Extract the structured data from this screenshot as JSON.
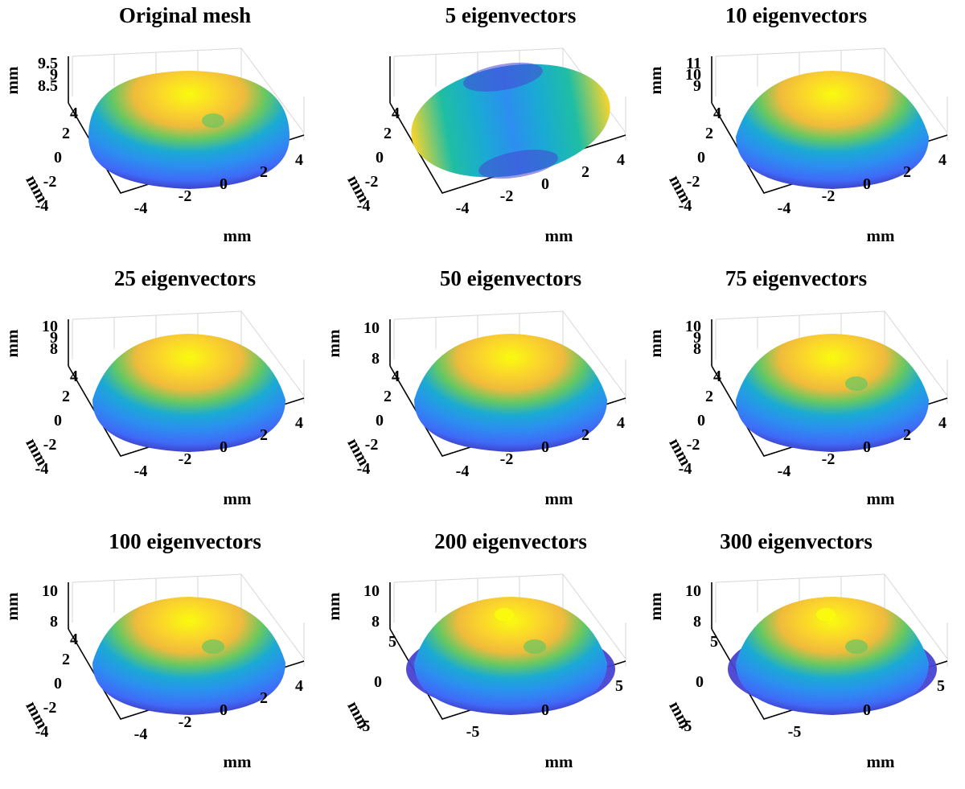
{
  "chart_data": [
    {
      "type": "surface",
      "title": "Original mesh",
      "xlabel": "mm",
      "ylabel": "mm",
      "zlabel": "mm",
      "xticks": [
        "-4",
        "-2",
        "0",
        "2",
        "4"
      ],
      "yticks": [
        "-4",
        "-2",
        "0",
        "2",
        "4"
      ],
      "zticks": [
        "9.5",
        "9",
        "8.5"
      ],
      "xlim": [
        -4.5,
        4.5
      ],
      "ylim": [
        -4.5,
        4.5
      ],
      "zlim": [
        8.3,
        9.7
      ],
      "grid": true,
      "shape": "dome",
      "detail": 0.25,
      "flat": false
    },
    {
      "type": "surface",
      "title": "5 eigenvectors",
      "xlabel": "mm",
      "ylabel": "mm",
      "zlabel": "",
      "xticks": [
        "-4",
        "-2",
        "0",
        "2",
        "4"
      ],
      "yticks": [
        "-4",
        "-2",
        "0",
        "2",
        "4"
      ],
      "zticks": [],
      "xlim": [
        -4.5,
        4.5
      ],
      "ylim": [
        -4.5,
        4.5
      ],
      "grid": true,
      "shape": "flat",
      "detail": 0,
      "flat": true
    },
    {
      "type": "surface",
      "title": "10 eigenvectors",
      "xlabel": "mm",
      "ylabel": "mm",
      "zlabel": "mm",
      "xticks": [
        "-4",
        "-2",
        "0",
        "2",
        "4"
      ],
      "yticks": [
        "-4",
        "-2",
        "0",
        "2",
        "4"
      ],
      "zticks": [
        "11",
        "10",
        "9"
      ],
      "xlim": [
        -4.5,
        4.5
      ],
      "ylim": [
        -4.5,
        4.5
      ],
      "zlim": [
        8.5,
        11.2
      ],
      "grid": true,
      "shape": "dome",
      "detail": 0,
      "flat": false
    },
    {
      "type": "surface",
      "title": "25 eigenvectors",
      "xlabel": "mm",
      "ylabel": "mm",
      "zlabel": "mm",
      "xticks": [
        "-4",
        "-2",
        "0",
        "2",
        "4"
      ],
      "yticks": [
        "-4",
        "-2",
        "0",
        "2",
        "4"
      ],
      "zticks": [
        "10",
        "9",
        "8"
      ],
      "xlim": [
        -4.5,
        4.5
      ],
      "ylim": [
        -4.5,
        4.5
      ],
      "zlim": [
        7.8,
        10.5
      ],
      "grid": true,
      "shape": "dome",
      "detail": 0.05,
      "flat": false
    },
    {
      "type": "surface",
      "title": "50 eigenvectors",
      "xlabel": "mm",
      "ylabel": "mm",
      "zlabel": "mm",
      "xticks": [
        "-4",
        "-2",
        "0",
        "2",
        "4"
      ],
      "yticks": [
        "-4",
        "-2",
        "0",
        "2",
        "4"
      ],
      "zticks": [
        "10",
        "8"
      ],
      "xlim": [
        -4.5,
        4.5
      ],
      "ylim": [
        -4.5,
        4.5
      ],
      "zlim": [
        7.8,
        10.5
      ],
      "grid": true,
      "shape": "dome",
      "detail": 0.1,
      "flat": false
    },
    {
      "type": "surface",
      "title": "75 eigenvectors",
      "xlabel": "mm",
      "ylabel": "mm",
      "zlabel": "mm",
      "xticks": [
        "-4",
        "-2",
        "0",
        "2",
        "4"
      ],
      "yticks": [
        "-4",
        "-2",
        "0",
        "2",
        "4"
      ],
      "zticks": [
        "10",
        "9",
        "8"
      ],
      "xlim": [
        -4.5,
        4.5
      ],
      "ylim": [
        -4.5,
        4.5
      ],
      "zlim": [
        7.8,
        10.5
      ],
      "grid": true,
      "shape": "dome",
      "detail": 0.2,
      "flat": false
    },
    {
      "type": "surface",
      "title": "100 eigenvectors",
      "xlabel": "mm",
      "ylabel": "mm",
      "zlabel": "mm",
      "xticks": [
        "-4",
        "-2",
        "0",
        "2",
        "4"
      ],
      "yticks": [
        "-4",
        "-2",
        "0",
        "2",
        "4"
      ],
      "zticks": [
        "10",
        "8"
      ],
      "xlim": [
        -4.5,
        4.5
      ],
      "ylim": [
        -4.5,
        4.5
      ],
      "zlim": [
        7.8,
        10.5
      ],
      "grid": true,
      "shape": "dome",
      "detail": 0.3,
      "flat": false
    },
    {
      "type": "surface",
      "title": "200 eigenvectors",
      "xlabel": "mm",
      "ylabel": "mm",
      "zlabel": "mm",
      "xticks": [
        "-5",
        "0",
        "5"
      ],
      "yticks": [
        "-5",
        "0",
        "5"
      ],
      "zticks": [
        "10",
        "8"
      ],
      "xlim": [
        -5.5,
        5.5
      ],
      "ylim": [
        -5.5,
        5.5
      ],
      "zlim": [
        7.8,
        10.5
      ],
      "grid": true,
      "shape": "dome",
      "detail": 0.5,
      "flat": false
    },
    {
      "type": "surface",
      "title": "300 eigenvectors",
      "xlabel": "mm",
      "ylabel": "mm",
      "zlabel": "mm",
      "xticks": [
        "-5",
        "0",
        "5"
      ],
      "yticks": [
        "-5",
        "0",
        "5"
      ],
      "zticks": [
        "10",
        "8"
      ],
      "xlim": [
        -5.5,
        5.5
      ],
      "ylim": [
        -5.5,
        5.5
      ],
      "zlim": [
        7.8,
        10.5
      ],
      "grid": true,
      "shape": "dome",
      "detail": 0.6,
      "flat": false
    }
  ],
  "colors": {
    "colormap": [
      "#3e26a8",
      "#4743d2",
      "#3f6af8",
      "#2c8ef0",
      "#1aaad4",
      "#1fbea3",
      "#65c863",
      "#b3c33b",
      "#f0bb3b",
      "#fbd52b",
      "#f9fb0e"
    ],
    "gridline": "#d7d7d7",
    "axis": "#000000"
  }
}
